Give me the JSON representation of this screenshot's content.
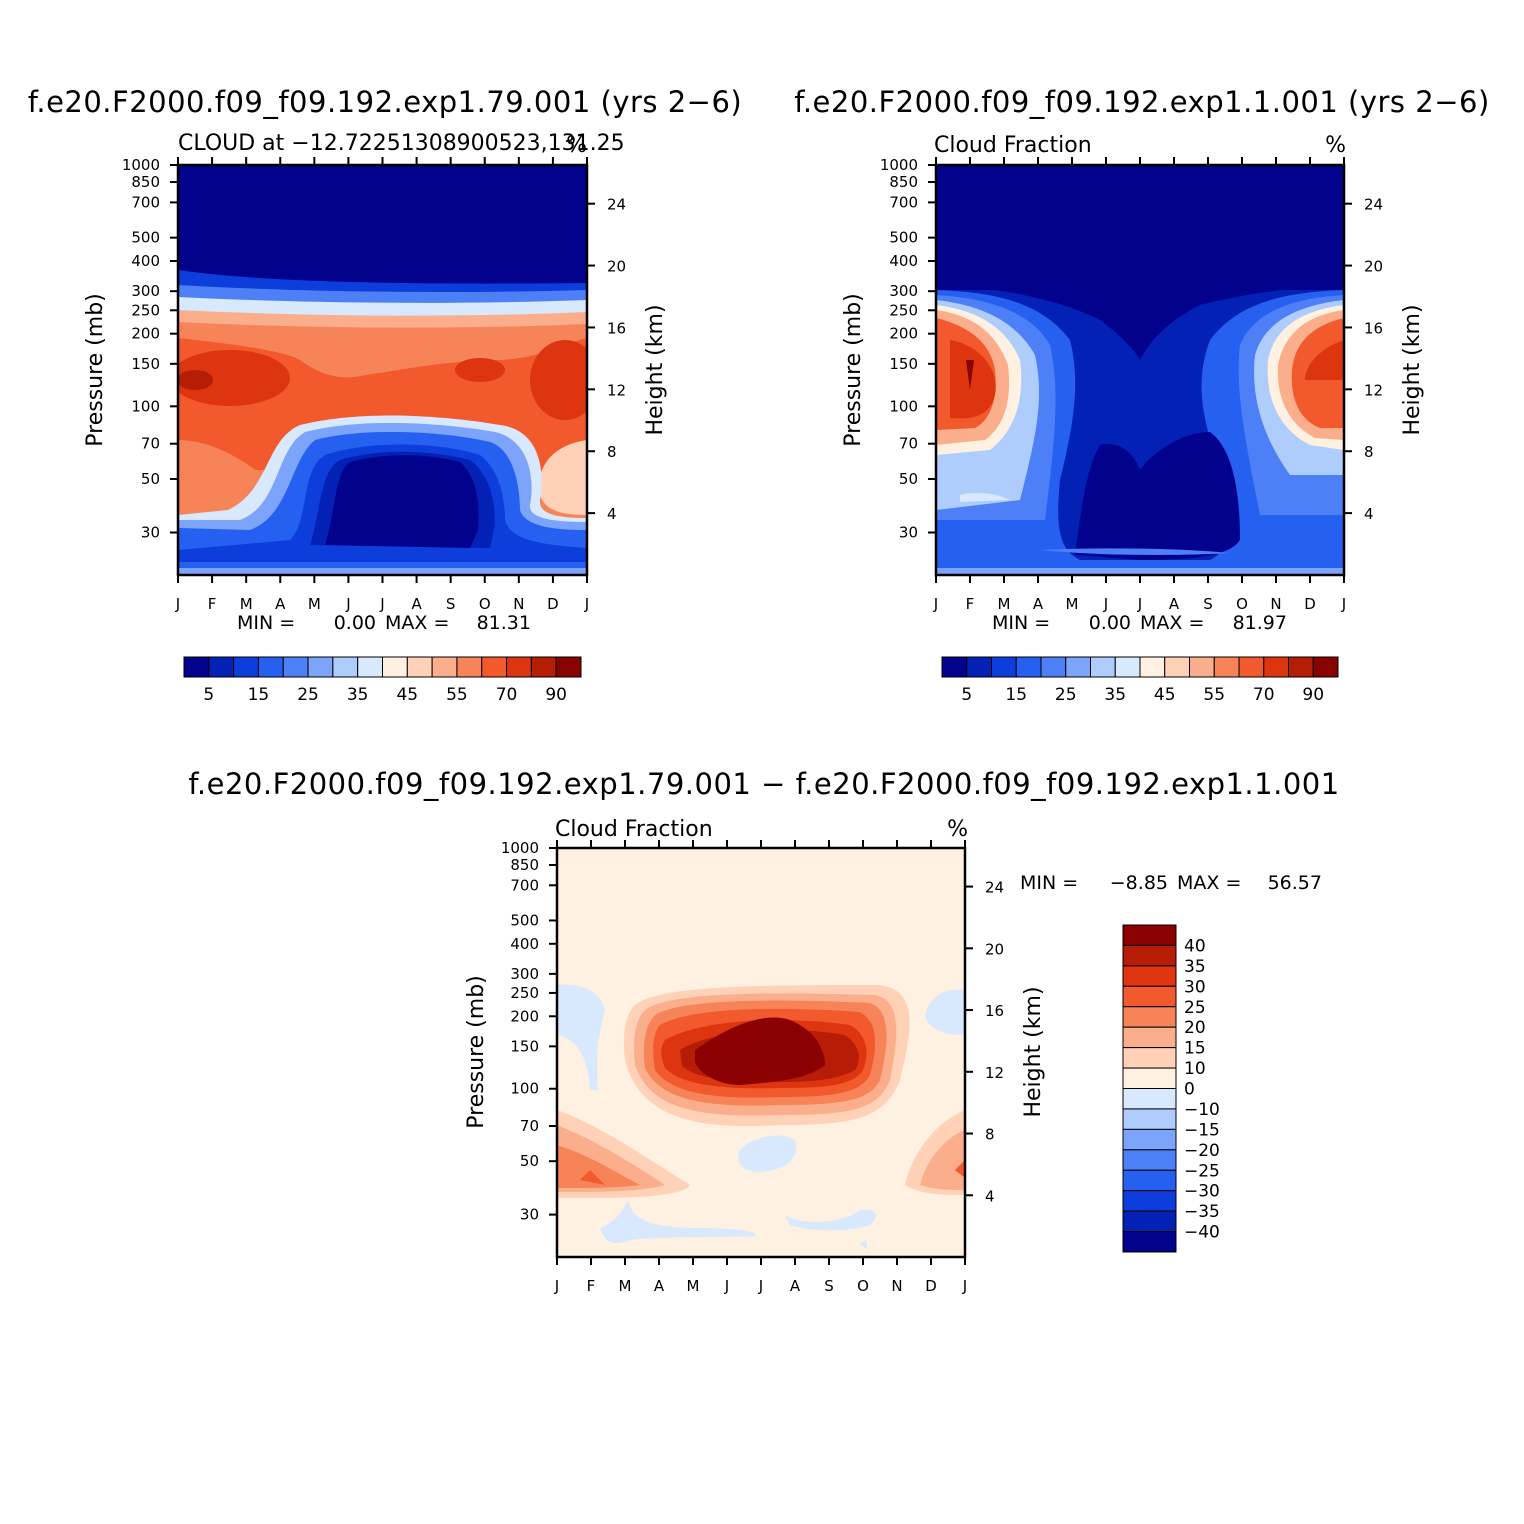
{
  "chart_data": [
    {
      "type": "heatmap",
      "title": "f.e20.F2000.f09_f09.192.exp1.79.001 (yrs 2−6)",
      "left_label": "CLOUD at −12.72251308900523,131.25",
      "units": "%",
      "ylabel": "Pressure (mb)",
      "y2label": "Height (km)",
      "x_ticks": [
        "J",
        "F",
        "M",
        "A",
        "M",
        "J",
        "J",
        "A",
        "S",
        "O",
        "N",
        "D",
        "J"
      ],
      "y_ticks": [
        30,
        50,
        70,
        100,
        150,
        200,
        250,
        300,
        400,
        500,
        700,
        850,
        1000
      ],
      "y2_ticks": [
        24,
        20,
        16,
        12,
        8,
        4
      ],
      "ylim": [
        1000,
        20
      ],
      "min_text": "MIN =",
      "min_value": "0.00",
      "max_text": "MAX =",
      "max_value": "81.31",
      "colorbar_ticks": [
        "5",
        "15",
        "25",
        "35",
        "45",
        "55",
        "70",
        "90"
      ],
      "levels": [
        5,
        10,
        15,
        20,
        25,
        30,
        35,
        40,
        45,
        50,
        55,
        60,
        70,
        80,
        90
      ],
      "colors": [
        "#03028d",
        "#0421b5",
        "#0d3edb",
        "#2660f1",
        "#4d80f7",
        "#7da4fb",
        "#aecdfc",
        "#d8e8fd",
        "#fff1e2",
        "#ffd2b8",
        "#fbae8b",
        "#f78458",
        "#f2592d",
        "#dd3510",
        "#b51d05",
        "#880300"
      ]
    },
    {
      "type": "heatmap",
      "title": "f.e20.F2000.f09_f09.192.exp1.1.001 (yrs 2−6)",
      "left_label": "Cloud Fraction",
      "units": "%",
      "ylabel": "Pressure (mb)",
      "y2label": "Height (km)",
      "x_ticks": [
        "J",
        "F",
        "M",
        "A",
        "M",
        "J",
        "J",
        "A",
        "S",
        "O",
        "N",
        "D",
        "J"
      ],
      "y_ticks": [
        30,
        50,
        70,
        100,
        150,
        200,
        250,
        300,
        400,
        500,
        700,
        850,
        1000
      ],
      "y2_ticks": [
        24,
        20,
        16,
        12,
        8,
        4
      ],
      "ylim": [
        1000,
        20
      ],
      "min_text": "MIN =",
      "min_value": "0.00",
      "max_text": "MAX =",
      "max_value": "81.97",
      "colorbar_ticks": [
        "5",
        "15",
        "25",
        "35",
        "45",
        "55",
        "70",
        "90"
      ],
      "levels": [
        5,
        10,
        15,
        20,
        25,
        30,
        35,
        40,
        45,
        50,
        55,
        60,
        70,
        80,
        90
      ],
      "colors": [
        "#03028d",
        "#0421b5",
        "#0d3edb",
        "#2660f1",
        "#4d80f7",
        "#7da4fb",
        "#aecdfc",
        "#d8e8fd",
        "#fff1e2",
        "#ffd2b8",
        "#fbae8b",
        "#f78458",
        "#f2592d",
        "#dd3510",
        "#b51d05",
        "#880300"
      ]
    },
    {
      "type": "heatmap",
      "title": "f.e20.F2000.f09_f09.192.exp1.79.001 − f.e20.F2000.f09_f09.192.exp1.1.001",
      "left_label": "Cloud Fraction",
      "units": "%",
      "ylabel": "Pressure (mb)",
      "y2label": "Height (km)",
      "x_ticks": [
        "J",
        "F",
        "M",
        "A",
        "M",
        "J",
        "J",
        "A",
        "S",
        "O",
        "N",
        "D",
        "J"
      ],
      "y_ticks": [
        30,
        50,
        70,
        100,
        150,
        200,
        250,
        300,
        400,
        500,
        700,
        850,
        1000
      ],
      "y2_ticks": [
        24,
        20,
        16,
        12,
        8,
        4
      ],
      "ylim": [
        1000,
        20
      ],
      "min_text": "MIN =",
      "min_value": "−8.85",
      "max_text": "MAX =",
      "max_value": "56.57",
      "colorbar_ticks": [
        "40",
        "35",
        "30",
        "25",
        "20",
        "15",
        "10",
        "0",
        "−10",
        "−15",
        "−20",
        "−25",
        "−30",
        "−35",
        "−40"
      ],
      "levels": [
        40,
        35,
        30,
        25,
        20,
        15,
        10,
        0,
        -10,
        -15,
        -20,
        -25,
        -30,
        -35,
        -40
      ],
      "colors": [
        "#8b0000",
        "#b71c06",
        "#de3410",
        "#f2592d",
        "#f78458",
        "#fbae8b",
        "#ffd2b8",
        "#fff1e2",
        "#d8e8fd",
        "#aecdfc",
        "#7da4fb",
        "#4d80f7",
        "#2660f1",
        "#0d3edb",
        "#0421b5",
        "#03028d"
      ]
    }
  ]
}
